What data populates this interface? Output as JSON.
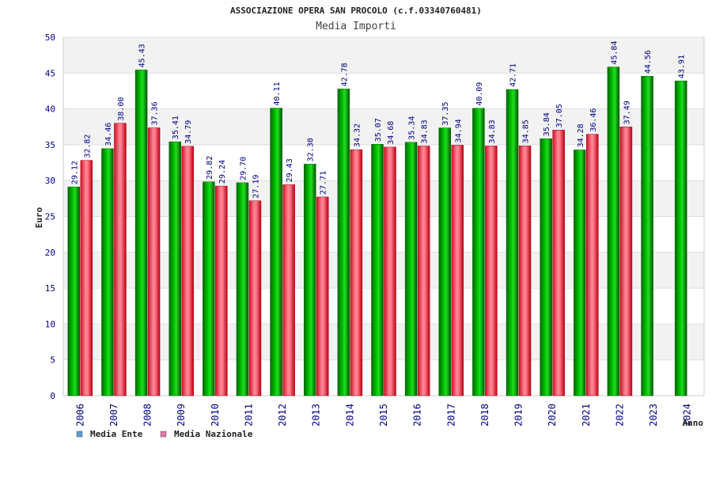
{
  "chart_data": {
    "type": "bar",
    "title": "ASSOCIAZIONE OPERA SAN PROCOLO (c.f.03340760481)",
    "subtitle": "Media Importi",
    "ylabel": "Euro",
    "xlabel": "Anno",
    "ylim": [
      0,
      50
    ],
    "yticks": [
      0,
      5,
      10,
      15,
      20,
      25,
      30,
      35,
      40,
      45,
      50
    ],
    "categories": [
      "2006",
      "2007",
      "2008",
      "2009",
      "2010",
      "2011",
      "2012",
      "2013",
      "2014",
      "2015",
      "2016",
      "2017",
      "2018",
      "2019",
      "2020",
      "2021",
      "2022",
      "2023",
      "2024"
    ],
    "series": [
      {
        "name": "Media Ente",
        "color": "#00aa00",
        "legend_color": "#5b9bd5",
        "values": [
          29.12,
          34.46,
          45.43,
          35.41,
          29.82,
          29.7,
          40.11,
          32.3,
          42.78,
          35.07,
          35.34,
          37.35,
          40.09,
          42.71,
          35.84,
          34.28,
          45.84,
          44.56,
          43.91
        ],
        "labels": [
          "29.12",
          "34.46",
          "45.43",
          "35.41",
          "29.82",
          "29.70",
          "40.11",
          "32.30",
          "42.78",
          "35.07",
          "35.34",
          "37.35",
          "40.09",
          "42.71",
          "35.84",
          "34.28",
          "45.84",
          "44.56",
          "43.91"
        ]
      },
      {
        "name": "Media Nazionale",
        "color": "#ee3344",
        "legend_color": "#e377a8",
        "values": [
          32.82,
          38.0,
          37.36,
          34.79,
          29.24,
          27.19,
          29.43,
          27.71,
          34.32,
          34.68,
          34.83,
          34.94,
          34.83,
          34.85,
          37.05,
          36.46,
          37.49,
          null,
          null
        ],
        "labels": [
          "32.82",
          "38.00",
          "37.36",
          "34.79",
          "29.24",
          "27.19",
          "29.43",
          "27.71",
          "34.32",
          "34.68",
          "34.83",
          "34.94",
          "34.83",
          "34.85",
          "37.05",
          "36.46",
          "37.49",
          null,
          null
        ]
      }
    ],
    "grid": true,
    "legend_position": "bottom-left"
  }
}
